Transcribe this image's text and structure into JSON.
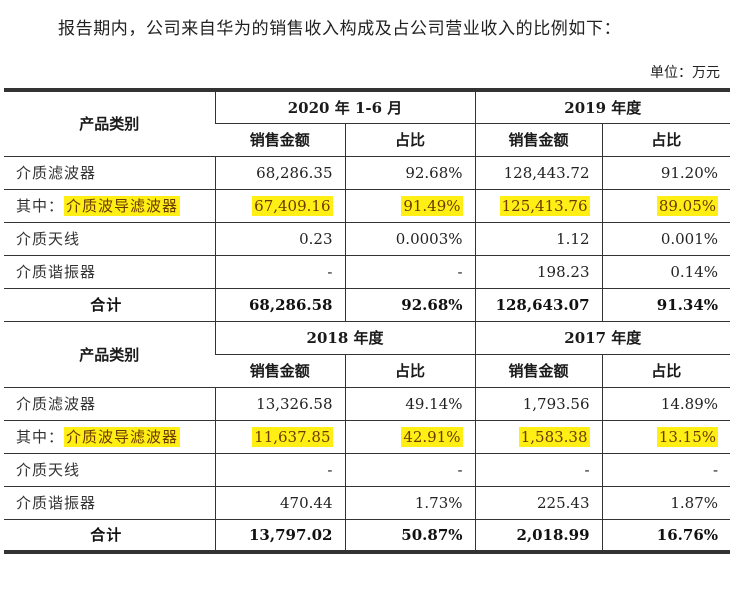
{
  "intro_text": "报告期内，公司来自华为的销售收入构成及占公司营业收入的比例如下：",
  "unit_label": "单位：万元",
  "highlight_color": "#ffef14",
  "table": {
    "category_header": "产品类别",
    "sections": [
      {
        "periods": [
          {
            "label": "2020 年 1-6 月",
            "sub": [
              "销售金额",
              "占比"
            ]
          },
          {
            "label": "2019 年度",
            "sub": [
              "销售金额",
              "占比"
            ]
          }
        ],
        "rows": [
          {
            "label": "介质滤波器",
            "prefix": "",
            "values": [
              "68,286.35",
              "92.68%",
              "128,443.72",
              "91.20%"
            ],
            "highlight": false
          },
          {
            "label": "介质波导滤波器",
            "prefix": "其中：",
            "values": [
              "67,409.16",
              "91.49%",
              "125,413.76",
              "89.05%"
            ],
            "highlight": true
          },
          {
            "label": "介质天线",
            "prefix": "",
            "values": [
              "0.23",
              "0.0003%",
              "1.12",
              "0.001%"
            ],
            "highlight": false
          },
          {
            "label": "介质谐振器",
            "prefix": "",
            "values": [
              "-",
              "-",
              "198.23",
              "0.14%"
            ],
            "highlight": false
          },
          {
            "label": "合计",
            "prefix": "",
            "values": [
              "68,286.58",
              "92.68%",
              "128,643.07",
              "91.34%"
            ],
            "highlight": false,
            "total": true
          }
        ]
      },
      {
        "periods": [
          {
            "label": "2018 年度",
            "sub": [
              "销售金额",
              "占比"
            ]
          },
          {
            "label": "2017 年度",
            "sub": [
              "销售金额",
              "占比"
            ]
          }
        ],
        "rows": [
          {
            "label": "介质滤波器",
            "prefix": "",
            "values": [
              "13,326.58",
              "49.14%",
              "1,793.56",
              "14.89%"
            ],
            "highlight": false
          },
          {
            "label": "介质波导滤波器",
            "prefix": "其中：",
            "values": [
              "11,637.85",
              "42.91%",
              "1,583.38",
              "13.15%"
            ],
            "highlight": true
          },
          {
            "label": "介质天线",
            "prefix": "",
            "values": [
              "-",
              "-",
              "-",
              "-"
            ],
            "highlight": false
          },
          {
            "label": "介质谐振器",
            "prefix": "",
            "values": [
              "470.44",
              "1.73%",
              "225.43",
              "1.87%"
            ],
            "highlight": false
          },
          {
            "label": "合计",
            "prefix": "",
            "values": [
              "13,797.02",
              "50.87%",
              "2,018.99",
              "16.76%"
            ],
            "highlight": false,
            "total": true
          }
        ]
      }
    ]
  }
}
